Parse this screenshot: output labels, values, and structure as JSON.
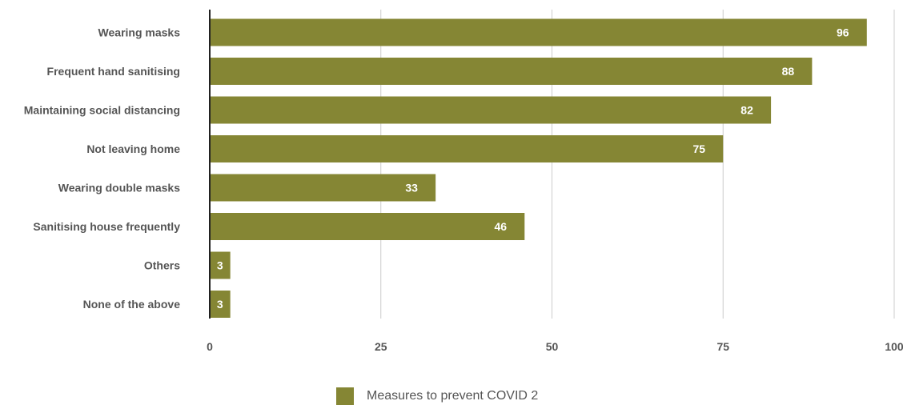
{
  "chart_data": {
    "type": "bar",
    "orientation": "horizontal",
    "categories": [
      "Wearing masks",
      "Frequent hand sanitising",
      "Maintaining social distancing",
      "Not leaving home",
      "Wearing double masks",
      "Sanitising house frequently",
      "Others",
      "None of the above"
    ],
    "series": [
      {
        "name": "Measures to prevent COVID 2",
        "values": [
          96,
          88,
          82,
          75,
          33,
          46,
          3,
          3
        ]
      }
    ],
    "xlim": [
      0,
      100
    ],
    "xticks": [
      "0",
      "25",
      "50",
      "75",
      "100"
    ],
    "grid": true,
    "legend_position": "bottom-center",
    "bar_color": "#858634",
    "data_label_color": "#ffffff",
    "grid_color": "#cccccc",
    "axis_color": "#222222"
  }
}
